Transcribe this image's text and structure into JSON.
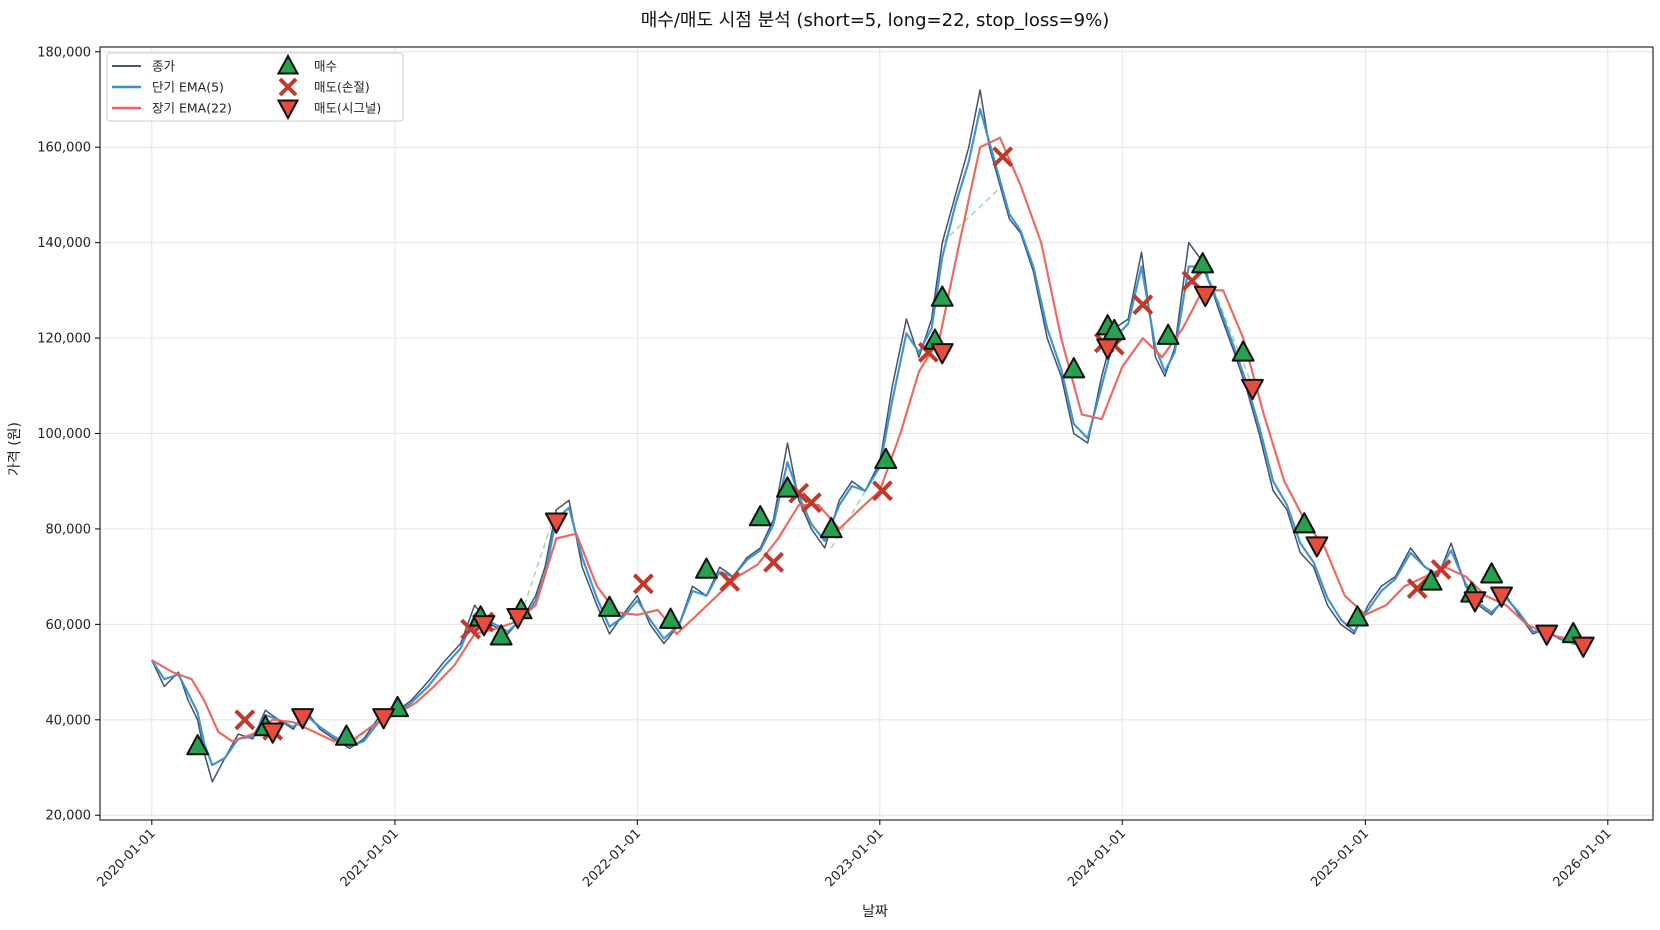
{
  "chart_data": {
    "type": "line",
    "title": "매수/매도 시점 분석 (short=5, long=22, stop_loss=9%)",
    "xlabel": "날짜",
    "ylabel": "가격 (원)",
    "x_range": [
      "2019-10-15",
      "2026-03-10"
    ],
    "ylim": [
      19000,
      181000
    ],
    "grid": true,
    "legend_position": "top-left",
    "x_ticks": [
      "2020-01-01",
      "2021-01-01",
      "2022-01-01",
      "2023-01-01",
      "2024-01-01",
      "2025-01-01",
      "2026-01-01"
    ],
    "y_ticks": [
      20000,
      40000,
      60000,
      80000,
      100000,
      120000,
      140000,
      160000,
      180000
    ],
    "y_tick_labels": [
      "20,000",
      "40,000",
      "60,000",
      "80,000",
      "100,000",
      "120,000",
      "140,000",
      "160,000",
      "180,000"
    ],
    "colors": {
      "close": "#2e4057",
      "ema_short": "#3b8ecf",
      "ema_long": "#e8645a",
      "buy": "#27a150",
      "sell_stop": "#c0392b",
      "sell_signal": "#e74c3c",
      "hold_segment": "#a8d8b9"
    },
    "series": [
      {
        "name": "종가",
        "x": [
          "2020-01-01",
          "2020-01-20",
          "2020-02-10",
          "2020-02-25",
          "2020-03-10",
          "2020-03-20",
          "2020-04-01",
          "2020-04-20",
          "2020-05-10",
          "2020-06-01",
          "2020-06-20",
          "2020-07-10",
          "2020-08-01",
          "2020-08-20",
          "2020-09-10",
          "2020-10-01",
          "2020-10-25",
          "2020-11-15",
          "2020-12-10",
          "2021-01-05",
          "2021-01-25",
          "2021-02-20",
          "2021-03-15",
          "2021-04-10",
          "2021-05-01",
          "2021-05-25",
          "2021-06-20",
          "2021-07-15",
          "2021-08-01",
          "2021-08-15",
          "2021-09-01",
          "2021-09-20",
          "2021-10-10",
          "2021-11-01",
          "2021-11-20",
          "2021-12-10",
          "2022-01-01",
          "2022-01-20",
          "2022-02-10",
          "2022-03-05",
          "2022-03-25",
          "2022-04-15",
          "2022-05-05",
          "2022-05-25",
          "2022-06-15",
          "2022-07-05",
          "2022-07-25",
          "2022-08-15",
          "2022-09-01",
          "2022-09-20",
          "2022-10-10",
          "2022-11-01",
          "2022-11-20",
          "2022-12-10",
          "2023-01-01",
          "2023-01-20",
          "2023-02-10",
          "2023-03-01",
          "2023-03-20",
          "2023-04-05",
          "2023-04-25",
          "2023-05-15",
          "2023-06-01",
          "2023-06-15",
          "2023-07-01",
          "2023-07-15",
          "2023-08-01",
          "2023-08-20",
          "2023-09-10",
          "2023-10-01",
          "2023-10-20",
          "2023-11-10",
          "2023-12-01",
          "2023-12-20",
          "2024-01-10",
          "2024-01-30",
          "2024-02-20",
          "2024-03-05",
          "2024-03-20",
          "2024-04-10",
          "2024-05-01",
          "2024-05-25",
          "2024-06-15",
          "2024-07-05",
          "2024-07-25",
          "2024-08-15",
          "2024-09-05",
          "2024-09-25",
          "2024-10-15",
          "2024-11-05",
          "2024-11-25",
          "2024-12-15",
          "2025-01-05",
          "2025-01-25",
          "2025-02-15",
          "2025-03-10",
          "2025-04-01",
          "2025-04-20",
          "2025-05-10",
          "2025-06-01",
          "2025-06-20",
          "2025-07-10",
          "2025-08-01",
          "2025-08-20",
          "2025-09-10",
          "2025-10-01",
          "2025-10-20",
          "2025-11-10",
          "2025-11-25"
        ],
        "values": [
          52500,
          47000,
          50000,
          44000,
          40000,
          33000,
          27000,
          32000,
          37000,
          36000,
          42000,
          40000,
          38000,
          42000,
          38000,
          36000,
          34000,
          36000,
          41000,
          42000,
          44000,
          48000,
          52000,
          56000,
          64000,
          60000,
          58000,
          62000,
          66000,
          72000,
          84000,
          86000,
          72000,
          64000,
          58000,
          62000,
          66000,
          60000,
          56000,
          60000,
          68000,
          66000,
          72000,
          70000,
          74000,
          76000,
          82000,
          98000,
          86000,
          80000,
          76000,
          86000,
          90000,
          88000,
          94000,
          110000,
          124000,
          116000,
          124000,
          140000,
          150000,
          160000,
          172000,
          160000,
          152000,
          145000,
          142000,
          134000,
          120000,
          112000,
          100000,
          98000,
          112000,
          122000,
          124000,
          138000,
          116000,
          112000,
          118000,
          140000,
          136000,
          126000,
          118000,
          110000,
          100000,
          88000,
          84000,
          75000,
          72000,
          64000,
          60000,
          58000,
          64000,
          68000,
          70000,
          76000,
          72000,
          70000,
          77000,
          68000,
          64000,
          62000,
          66000,
          62000,
          58000,
          59000,
          57000,
          56000,
          55500
        ]
      },
      {
        "name": "단기 EMA(5)",
        "x": [
          "2020-01-01",
          "2020-01-20",
          "2020-02-10",
          "2020-02-25",
          "2020-03-10",
          "2020-03-20",
          "2020-04-01",
          "2020-04-20",
          "2020-05-10",
          "2020-06-01",
          "2020-06-20",
          "2020-07-10",
          "2020-08-01",
          "2020-08-20",
          "2020-09-10",
          "2020-10-01",
          "2020-10-25",
          "2020-11-15",
          "2020-12-10",
          "2021-01-05",
          "2021-01-25",
          "2021-02-20",
          "2021-03-15",
          "2021-04-10",
          "2021-05-01",
          "2021-05-25",
          "2021-06-20",
          "2021-07-15",
          "2021-08-01",
          "2021-08-15",
          "2021-09-01",
          "2021-09-20",
          "2021-10-10",
          "2021-11-01",
          "2021-11-20",
          "2021-12-10",
          "2022-01-01",
          "2022-01-20",
          "2022-02-10",
          "2022-03-05",
          "2022-03-25",
          "2022-04-15",
          "2022-05-05",
          "2022-05-25",
          "2022-06-15",
          "2022-07-05",
          "2022-07-25",
          "2022-08-15",
          "2022-09-01",
          "2022-09-20",
          "2022-10-10",
          "2022-11-01",
          "2022-11-20",
          "2022-12-10",
          "2023-01-01",
          "2023-01-20",
          "2023-02-10",
          "2023-03-01",
          "2023-03-20",
          "2023-04-05",
          "2023-04-25",
          "2023-05-15",
          "2023-06-01",
          "2023-06-15",
          "2023-07-01",
          "2023-07-15",
          "2023-08-01",
          "2023-08-20",
          "2023-09-10",
          "2023-10-01",
          "2023-10-20",
          "2023-11-10",
          "2023-12-01",
          "2023-12-20",
          "2024-01-10",
          "2024-01-30",
          "2024-02-20",
          "2024-03-05",
          "2024-03-20",
          "2024-04-10",
          "2024-05-01",
          "2024-05-25",
          "2024-06-15",
          "2024-07-05",
          "2024-07-25",
          "2024-08-15",
          "2024-09-05",
          "2024-09-25",
          "2024-10-15",
          "2024-11-05",
          "2024-11-25",
          "2024-12-15",
          "2025-01-05",
          "2025-01-25",
          "2025-02-15",
          "2025-03-10",
          "2025-04-01",
          "2025-04-20",
          "2025-05-10",
          "2025-06-01",
          "2025-06-20",
          "2025-07-10",
          "2025-08-01",
          "2025-08-20",
          "2025-09-10",
          "2025-10-01",
          "2025-10-20",
          "2025-11-10",
          "2025-11-25"
        ],
        "values": [
          52500,
          48500,
          49500,
          45500,
          41500,
          35000,
          30500,
          32000,
          36000,
          36500,
          41000,
          40000,
          38500,
          41000,
          38500,
          36500,
          34500,
          35500,
          40000,
          41500,
          43500,
          47000,
          51000,
          55000,
          62000,
          60500,
          58500,
          61500,
          65000,
          70500,
          82000,
          84500,
          74000,
          65500,
          59500,
          61500,
          65000,
          61000,
          57000,
          60000,
          67000,
          66000,
          71000,
          70000,
          73500,
          75500,
          81000,
          94000,
          87000,
          81000,
          77500,
          85000,
          89000,
          88000,
          93000,
          107000,
          121000,
          117000,
          122000,
          137000,
          148000,
          157000,
          168000,
          161000,
          153000,
          146000,
          142500,
          135000,
          122000,
          113500,
          102000,
          99000,
          110000,
          120000,
          123000,
          135000,
          118000,
          113000,
          117000,
          135000,
          135000,
          127000,
          119000,
          111000,
          101500,
          90000,
          85000,
          77000,
          73000,
          65500,
          61000,
          58500,
          63000,
          67000,
          69500,
          75000,
          72000,
          70500,
          75500,
          68500,
          64500,
          62500,
          65500,
          62500,
          58500,
          58500,
          57000,
          56000,
          55600
        ]
      },
      {
        "name": "장기 EMA(22)",
        "x": [
          "2020-01-01",
          "2020-02-01",
          "2020-03-01",
          "2020-03-20",
          "2020-04-10",
          "2020-05-01",
          "2020-06-01",
          "2020-07-01",
          "2020-08-01",
          "2020-09-01",
          "2020-10-01",
          "2020-11-01",
          "2020-12-01",
          "2021-01-01",
          "2021-02-01",
          "2021-03-01",
          "2021-04-01",
          "2021-05-01",
          "2021-06-01",
          "2021-07-01",
          "2021-08-01",
          "2021-09-01",
          "2021-10-01",
          "2021-11-01",
          "2021-12-01",
          "2022-01-01",
          "2022-02-01",
          "2022-03-01",
          "2022-04-01",
          "2022-05-01",
          "2022-06-01",
          "2022-07-01",
          "2022-08-01",
          "2022-09-01",
          "2022-10-01",
          "2022-11-01",
          "2022-12-01",
          "2023-01-01",
          "2023-02-01",
          "2023-03-01",
          "2023-04-01",
          "2023-05-01",
          "2023-06-01",
          "2023-07-01",
          "2023-08-01",
          "2023-09-01",
          "2023-10-01",
          "2023-11-01",
          "2023-12-01",
          "2024-01-01",
          "2024-02-01",
          "2024-03-01",
          "2024-04-01",
          "2024-05-01",
          "2024-06-01",
          "2024-07-01",
          "2024-08-01",
          "2024-09-01",
          "2024-10-01",
          "2024-11-01",
          "2024-12-01",
          "2025-01-01",
          "2025-02-01",
          "2025-03-01",
          "2025-04-01",
          "2025-05-01",
          "2025-06-01",
          "2025-07-01",
          "2025-08-01",
          "2025-09-01",
          "2025-10-01",
          "2025-11-01",
          "2025-11-25"
        ],
        "values": [
          52500,
          50000,
          48500,
          44000,
          37500,
          35500,
          37000,
          40000,
          39500,
          37500,
          35500,
          36000,
          39000,
          41000,
          43500,
          47000,
          51500,
          58000,
          59000,
          60500,
          64000,
          78000,
          79000,
          68000,
          62500,
          62000,
          63000,
          58000,
          62000,
          66000,
          70000,
          72500,
          78000,
          85000,
          85000,
          80000,
          84000,
          88000,
          100000,
          113000,
          120000,
          140000,
          160000,
          162000,
          152000,
          140000,
          120000,
          104000,
          103000,
          114000,
          120000,
          116000,
          122000,
          130000,
          130000,
          120000,
          104000,
          90000,
          82000,
          76000,
          66000,
          62000,
          64000,
          68000,
          70000,
          72000,
          70000,
          66000,
          64000,
          60000,
          58000,
          57000,
          56000
        ]
      }
    ],
    "markers": {
      "buy": {
        "name": "매수",
        "x": [
          "2020-03-10",
          "2020-06-20",
          "2020-10-20",
          "2021-01-05",
          "2021-05-10",
          "2021-06-10",
          "2021-07-10",
          "2021-11-20",
          "2022-02-20",
          "2022-04-15",
          "2022-07-05",
          "2022-08-15",
          "2022-10-20",
          "2023-01-10",
          "2023-03-25",
          "2023-04-05",
          "2023-10-20",
          "2023-12-10",
          "2023-12-20",
          "2024-03-10",
          "2024-05-01",
          "2024-07-01",
          "2024-10-01",
          "2024-12-20",
          "2025-04-10",
          "2025-06-10",
          "2025-07-10",
          "2025-11-10"
        ],
        "values": [
          34500,
          38500,
          36500,
          42500,
          61500,
          57500,
          63000,
          63500,
          61000,
          71500,
          82500,
          88500,
          80000,
          94500,
          119500,
          128500,
          113500,
          122500,
          121500,
          120500,
          135500,
          117000,
          81000,
          61500,
          69000,
          66500,
          70500,
          58000
        ]
      },
      "sell_stop": {
        "name": "매도(손절)",
        "x": [
          "2020-05-20",
          "2020-07-01",
          "2021-04-25",
          "2021-05-15",
          "2022-01-10",
          "2022-05-20",
          "2022-07-25",
          "2022-09-01",
          "2022-09-20",
          "2023-01-05",
          "2023-03-15",
          "2023-07-05",
          "2023-12-05",
          "2023-12-20",
          "2024-02-01",
          "2024-04-15",
          "2025-03-20",
          "2025-04-25"
        ],
        "values": [
          40000,
          37800,
          59000,
          60500,
          68500,
          69000,
          73000,
          87500,
          85500,
          88000,
          117000,
          158000,
          119000,
          118500,
          127000,
          132000,
          67500,
          71500
        ]
      },
      "sell_signal": {
        "name": "매도(시그널)",
        "x": [
          "2020-07-01",
          "2020-08-15",
          "2020-12-15",
          "2021-05-15",
          "2021-07-05",
          "2021-09-01",
          "2023-04-05",
          "2023-12-10",
          "2024-05-05",
          "2024-07-15",
          "2024-10-20",
          "2025-06-15",
          "2025-07-25",
          "2025-10-01",
          "2025-11-25"
        ],
        "values": [
          37500,
          40500,
          40500,
          60000,
          61500,
          81500,
          117000,
          118000,
          129000,
          109500,
          76500,
          65000,
          66000,
          58000,
          55500
        ]
      }
    },
    "holding_periods": [
      [
        "2020-10-20",
        "2020-12-15"
      ],
      [
        "2021-07-10",
        "2021-09-01"
      ],
      [
        "2022-10-20",
        "2023-01-05"
      ],
      [
        "2023-04-05",
        "2023-07-05"
      ],
      [
        "2024-05-01",
        "2024-07-15"
      ]
    ]
  }
}
